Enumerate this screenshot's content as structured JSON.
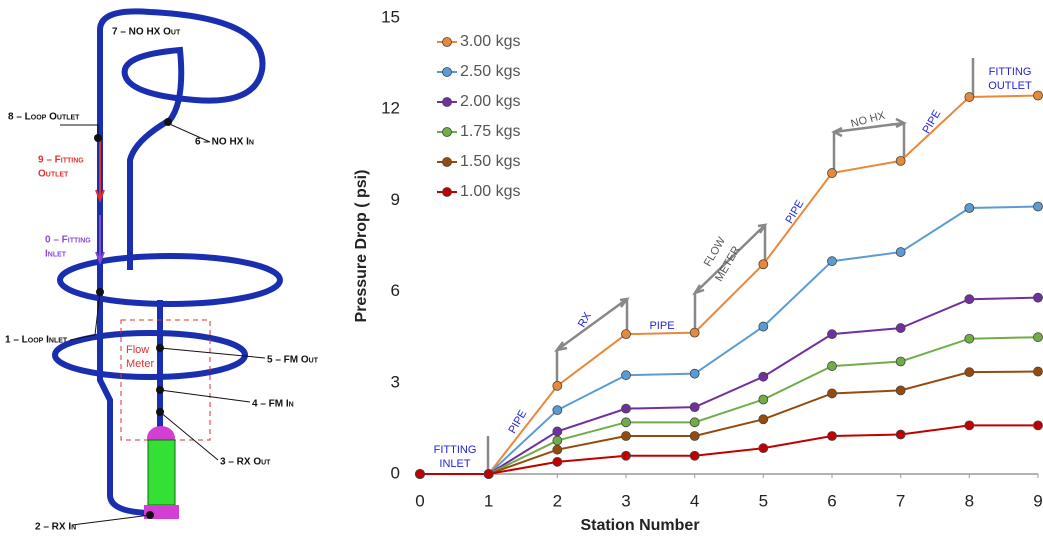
{
  "diagram": {
    "labels": [
      "7 – NO HX Out",
      "8 – Loop Outlet",
      "6 – NO HX In",
      "9 – Fitting",
      "Outlet",
      "0 – Fitting",
      "Inlet",
      "1 – Loop Inlet",
      "Flow",
      "Meter",
      "5 – FM Out",
      "4 – FM In",
      "3 – RX Out",
      "2 – RX In"
    ]
  },
  "chart_data": {
    "type": "line",
    "x_label": "Station Number",
    "y_label": "Pressure Drop  ( psi)",
    "x": [
      0,
      1,
      2,
      3,
      4,
      5,
      6,
      7,
      8,
      9
    ],
    "xlim": [
      0,
      9
    ],
    "xticks": [
      0,
      1,
      2,
      3,
      4,
      5,
      6,
      7,
      8,
      9
    ],
    "ylim": [
      0,
      15
    ],
    "yticks": [
      0,
      3,
      6,
      9,
      12,
      15
    ],
    "series": [
      {
        "name": "3.00 kgs",
        "color": "#e8893a",
        "values": [
          0,
          0,
          2.9,
          4.6,
          4.65,
          6.9,
          9.9,
          10.3,
          12.4,
          12.45
        ]
      },
      {
        "name": "2.50 kgs",
        "color": "#5b9bd5",
        "values": [
          0,
          0,
          2.1,
          3.25,
          3.3,
          4.85,
          7.0,
          7.3,
          8.75,
          8.8
        ]
      },
      {
        "name": "2.00 kgs",
        "color": "#7030a0",
        "values": [
          0,
          0,
          1.4,
          2.15,
          2.2,
          3.2,
          4.6,
          4.8,
          5.75,
          5.8
        ]
      },
      {
        "name": "1.75 kgs",
        "color": "#70ad47",
        "values": [
          0,
          0,
          1.1,
          1.7,
          1.7,
          2.45,
          3.55,
          3.7,
          4.45,
          4.5
        ]
      },
      {
        "name": "1.50 kgs",
        "color": "#964b0c",
        "values": [
          0,
          0,
          0.8,
          1.25,
          1.25,
          1.8,
          2.65,
          2.75,
          3.35,
          3.37
        ]
      },
      {
        "name": "1.00 kgs",
        "color": "#c00000",
        "values": [
          0,
          0,
          0.4,
          0.6,
          0.6,
          0.85,
          1.25,
          1.3,
          1.6,
          1.6
        ]
      }
    ],
    "annotations": [
      "FITTING",
      "INLET",
      "PIPE",
      "RX",
      "PIPE",
      "FLOW",
      "METER",
      "PIPE",
      "NO HX",
      "PIPE",
      "FITTING",
      "OUTLET"
    ]
  }
}
